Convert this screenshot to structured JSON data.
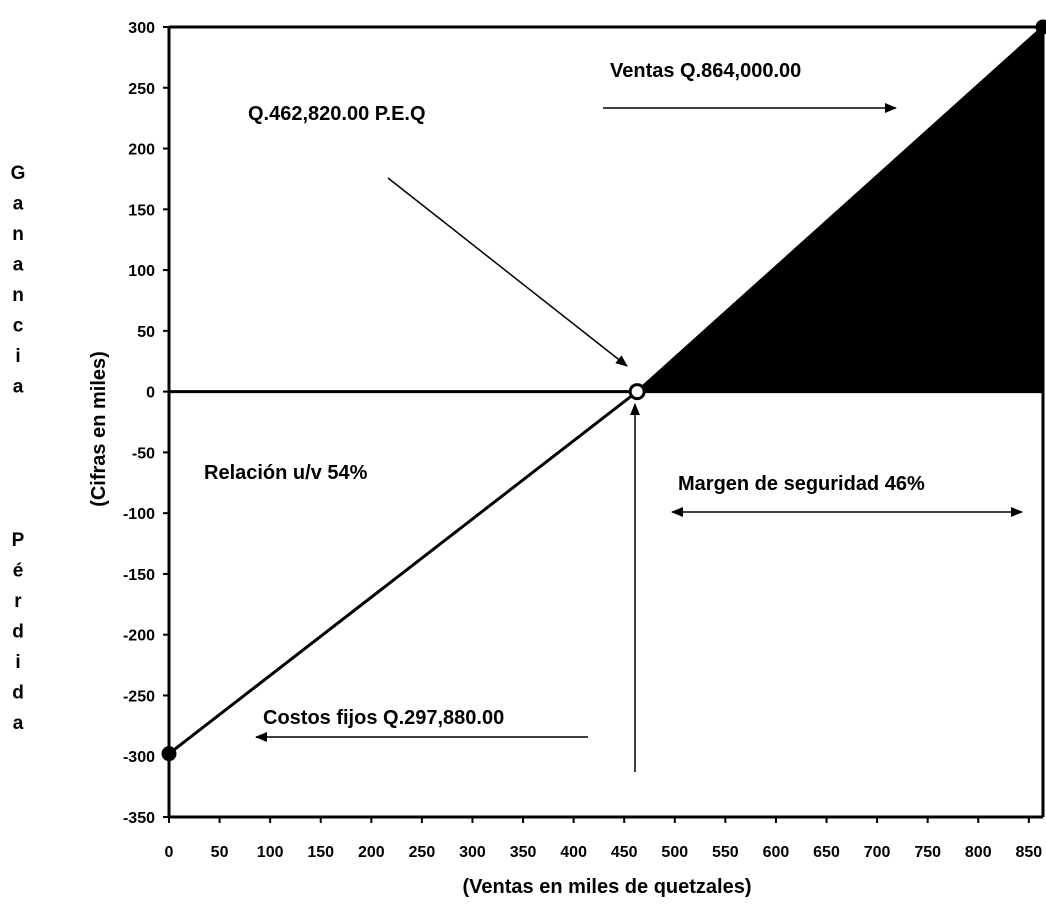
{
  "chart_data": {
    "type": "line",
    "xlabel": "(Ventas en miles de quetzales)",
    "ylabel": "(Cifras en miles)",
    "xlim": [
      0,
      864
    ],
    "ylim": [
      -350,
      300
    ],
    "x_ticks": [
      "0",
      "50",
      "100",
      "150",
      "200",
      "250",
      "300",
      "350",
      "400",
      "450",
      "500",
      "550",
      "600",
      "650",
      "700",
      "750",
      "800",
      "850"
    ],
    "y_ticks": [
      "300",
      "250",
      "200",
      "150",
      "100",
      "50",
      "0",
      "-50",
      "-100",
      "-150",
      "-200",
      "-250",
      "-300",
      "-350"
    ],
    "series": [
      {
        "values": [
          {
            "x": 0,
            "y": -297.88
          },
          {
            "x": 462.82,
            "y": 0
          },
          {
            "x": 864,
            "y": 300
          }
        ]
      }
    ],
    "points": [
      {
        "x": 0,
        "y": -297.88
      },
      {
        "x": 462.82,
        "y": 0
      },
      {
        "x": 864,
        "y": 300
      }
    ],
    "profit_area": {
      "x_start": 462.82,
      "x_end": 864
    },
    "side_labels": {
      "profit": "Ganancia",
      "loss": "Pérdida"
    },
    "annotations": {
      "ventas": "Ventas Q.864,000.00",
      "peq": "Q.462,820.00 P.E.Q",
      "relacion": "Relación u/v 54%",
      "margen": "Margen de seguridad  46%",
      "costos": "Costos fijos Q.297,880.00"
    },
    "grid": false,
    "colors": {
      "line": "#000000",
      "fill": "#000000"
    }
  }
}
